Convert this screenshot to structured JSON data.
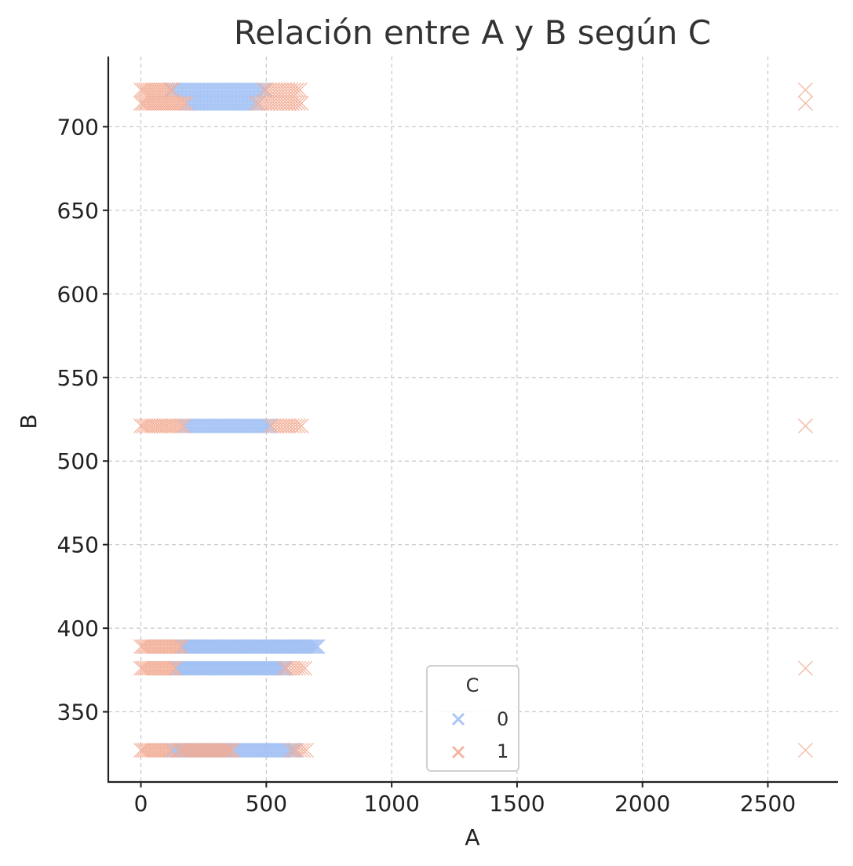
{
  "chart_data": {
    "type": "scatter",
    "title": "Relación entre A y B según C",
    "xlabel": "A",
    "ylabel": "B",
    "xlim": [
      -130,
      2780
    ],
    "ylim": [
      308,
      742
    ],
    "xticks": [
      0,
      500,
      1000,
      1500,
      2000,
      2500
    ],
    "yticks": [
      350,
      400,
      450,
      500,
      550,
      600,
      650,
      700
    ],
    "grid": true,
    "marker": "x",
    "legend": {
      "title": "C",
      "position": "bottom-center"
    },
    "series": [
      {
        "name": "0",
        "color": "#a1c0f4",
        "bands": [
          {
            "y": 722,
            "x_from": 120,
            "x_to": 500,
            "step": 8
          },
          {
            "y": 714,
            "x_from": 180,
            "x_to": 470,
            "step": 8
          },
          {
            "y": 521,
            "x_from": 170,
            "x_to": 520,
            "step": 8
          },
          {
            "y": 389,
            "x_from": 160,
            "x_to": 710,
            "step": 6
          },
          {
            "y": 376,
            "x_from": 140,
            "x_to": 580,
            "step": 6
          },
          {
            "y": 327,
            "x_from": 120,
            "x_to": 620,
            "step": 7
          }
        ],
        "points": []
      },
      {
        "name": "1",
        "color": "#f2ad96",
        "bands": [
          {
            "y": 722,
            "x_from": 0,
            "x_to": 130,
            "step": 9
          },
          {
            "y": 714,
            "x_from": 0,
            "x_to": 180,
            "step": 9
          },
          {
            "y": 722,
            "x_from": 490,
            "x_to": 640,
            "step": 12
          },
          {
            "y": 714,
            "x_from": 460,
            "x_to": 640,
            "step": 12
          },
          {
            "y": 521,
            "x_from": 0,
            "x_to": 170,
            "step": 10
          },
          {
            "y": 521,
            "x_from": 520,
            "x_to": 650,
            "step": 12
          },
          {
            "y": 389,
            "x_from": 0,
            "x_to": 160,
            "step": 8
          },
          {
            "y": 376,
            "x_from": 0,
            "x_to": 140,
            "step": 8
          },
          {
            "y": 376,
            "x_from": 570,
            "x_to": 660,
            "step": 12
          },
          {
            "y": 327,
            "x_from": 0,
            "x_to": 120,
            "step": 8
          },
          {
            "y": 327,
            "x_from": 150,
            "x_to": 370,
            "step": 8
          },
          {
            "y": 327,
            "x_from": 600,
            "x_to": 660,
            "step": 12
          }
        ],
        "points": [
          {
            "x": 2650,
            "y": 722
          },
          {
            "x": 2650,
            "y": 714
          },
          {
            "x": 2650,
            "y": 521
          },
          {
            "x": 2650,
            "y": 376
          },
          {
            "x": 2650,
            "y": 327
          }
        ]
      }
    ]
  }
}
